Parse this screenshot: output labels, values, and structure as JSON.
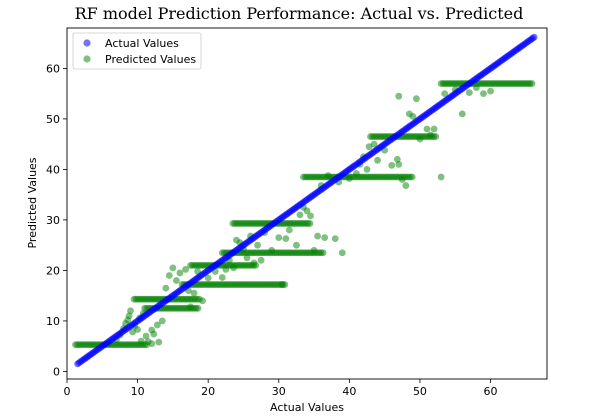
{
  "chart_data": {
    "type": "scatter",
    "title": "RF model Prediction Performance: Actual vs. Predicted",
    "xlabel": "Actual Values",
    "ylabel": "Predicted Values",
    "xlim": [
      0,
      68
    ],
    "ylim": [
      -1.5,
      68
    ],
    "xticks": [
      0,
      10,
      20,
      30,
      40,
      50,
      60
    ],
    "yticks": [
      0,
      10,
      20,
      30,
      40,
      50,
      60
    ],
    "grid": false,
    "legend_position": "top-left",
    "series": [
      {
        "name": "Actual Values",
        "color": "#0000ff",
        "alpha": 0.55,
        "kind": "identity",
        "x_range": [
          1.5,
          66.2
        ],
        "step": 0.22
      },
      {
        "name": "Predicted Values",
        "color": "#008000",
        "alpha": 0.5,
        "kind": "steps",
        "bands": [
          {
            "y": 5.3,
            "x_range": [
              1.2,
              11.5
            ]
          },
          {
            "y": 14.3,
            "x_range": [
              9.5,
              19.0
            ]
          },
          {
            "y": 12.5,
            "x_range": [
              11.0,
              18.8
            ]
          },
          {
            "y": 17.2,
            "x_range": [
              16.3,
              31.0
            ]
          },
          {
            "y": 21.0,
            "x_range": [
              17.5,
              27.0
            ]
          },
          {
            "y": 23.5,
            "x_range": [
              22.0,
              36.5
            ]
          },
          {
            "y": 29.3,
            "x_range": [
              23.5,
              34.5
            ]
          },
          {
            "y": 38.5,
            "x_range": [
              33.5,
              49.0
            ]
          },
          {
            "y": 46.5,
            "x_range": [
              43.0,
              52.5
            ]
          },
          {
            "y": 57.0,
            "x_range": [
              53.0,
              66.0
            ]
          }
        ],
        "points": [
          [
            7.5,
            7.2
          ],
          [
            8.0,
            8.5
          ],
          [
            8.3,
            9.5
          ],
          [
            8.6,
            10.2
          ],
          [
            8.8,
            11.0
          ],
          [
            9.0,
            12.0
          ],
          [
            9.3,
            7.8
          ],
          [
            9.6,
            9.0
          ],
          [
            10.0,
            8.3
          ],
          [
            10.3,
            10.6
          ],
          [
            10.8,
            11.5
          ],
          [
            11.2,
            7.0
          ],
          [
            12.0,
            8.2
          ],
          [
            12.3,
            7.4
          ],
          [
            12.8,
            9.2
          ],
          [
            13.5,
            10.0
          ],
          [
            14.0,
            16.5
          ],
          [
            14.5,
            19.0
          ],
          [
            15.0,
            20.5
          ],
          [
            15.5,
            18.0
          ],
          [
            16.0,
            19.5
          ],
          [
            16.8,
            20.2
          ],
          [
            17.2,
            16.0
          ],
          [
            17.5,
            12.8
          ],
          [
            18.0,
            15.5
          ],
          [
            18.5,
            19.8
          ],
          [
            19.2,
            14.0
          ],
          [
            20.0,
            18.5
          ],
          [
            21.0,
            19.8
          ],
          [
            22.0,
            18.6
          ],
          [
            22.5,
            20.2
          ],
          [
            23.0,
            22.0
          ],
          [
            23.6,
            20.5
          ],
          [
            24.0,
            26.0
          ],
          [
            24.5,
            25.5
          ],
          [
            25.0,
            24.2
          ],
          [
            25.5,
            22.5
          ],
          [
            26.0,
            26.8
          ],
          [
            26.5,
            21.5
          ],
          [
            27.0,
            25.0
          ],
          [
            27.5,
            22.0
          ],
          [
            28.0,
            27.5
          ],
          [
            29.0,
            24.0
          ],
          [
            30.0,
            26.5
          ],
          [
            30.5,
            17.2
          ],
          [
            31.0,
            26.3
          ],
          [
            31.5,
            28.0
          ],
          [
            32.5,
            25.0
          ],
          [
            33.0,
            31.0
          ],
          [
            33.5,
            32.5
          ],
          [
            34.0,
            31.8
          ],
          [
            34.5,
            30.8
          ],
          [
            35.0,
            24.0
          ],
          [
            35.5,
            26.8
          ],
          [
            36.5,
            26.5
          ],
          [
            38.0,
            26.3
          ],
          [
            39.0,
            23.5
          ],
          [
            37.0,
            38.8
          ],
          [
            36.0,
            36.8
          ],
          [
            38.5,
            37.5
          ],
          [
            40.0,
            38.2
          ],
          [
            41.0,
            39.2
          ],
          [
            41.5,
            41.0
          ],
          [
            42.0,
            42.5
          ],
          [
            42.5,
            40.0
          ],
          [
            42.8,
            44.5
          ],
          [
            43.5,
            45.0
          ],
          [
            44.0,
            41.8
          ],
          [
            45.0,
            43.8
          ],
          [
            46.0,
            40.8
          ],
          [
            46.8,
            42.0
          ],
          [
            47.0,
            41.0
          ],
          [
            47.5,
            38.0
          ],
          [
            48.0,
            36.8
          ],
          [
            48.5,
            51.0
          ],
          [
            49.0,
            50.5
          ],
          [
            50.0,
            46.0
          ],
          [
            51.0,
            48.0
          ],
          [
            51.5,
            46.8
          ],
          [
            52.0,
            48.0
          ],
          [
            53.0,
            38.5
          ],
          [
            53.5,
            55.0
          ],
          [
            55.0,
            55.8
          ],
          [
            56.0,
            51.0
          ],
          [
            57.0,
            55.2
          ],
          [
            58.0,
            56.2
          ],
          [
            59.0,
            55.0
          ],
          [
            60.0,
            55.5
          ],
          [
            49.5,
            54.0
          ],
          [
            47.0,
            54.5
          ],
          [
            12.0,
            5.5
          ],
          [
            13.0,
            5.8
          ],
          [
            6.0,
            5.6
          ],
          [
            7.0,
            6.3
          ],
          [
            10.5,
            6.0
          ],
          [
            11.5,
            5.9
          ]
        ]
      }
    ]
  }
}
